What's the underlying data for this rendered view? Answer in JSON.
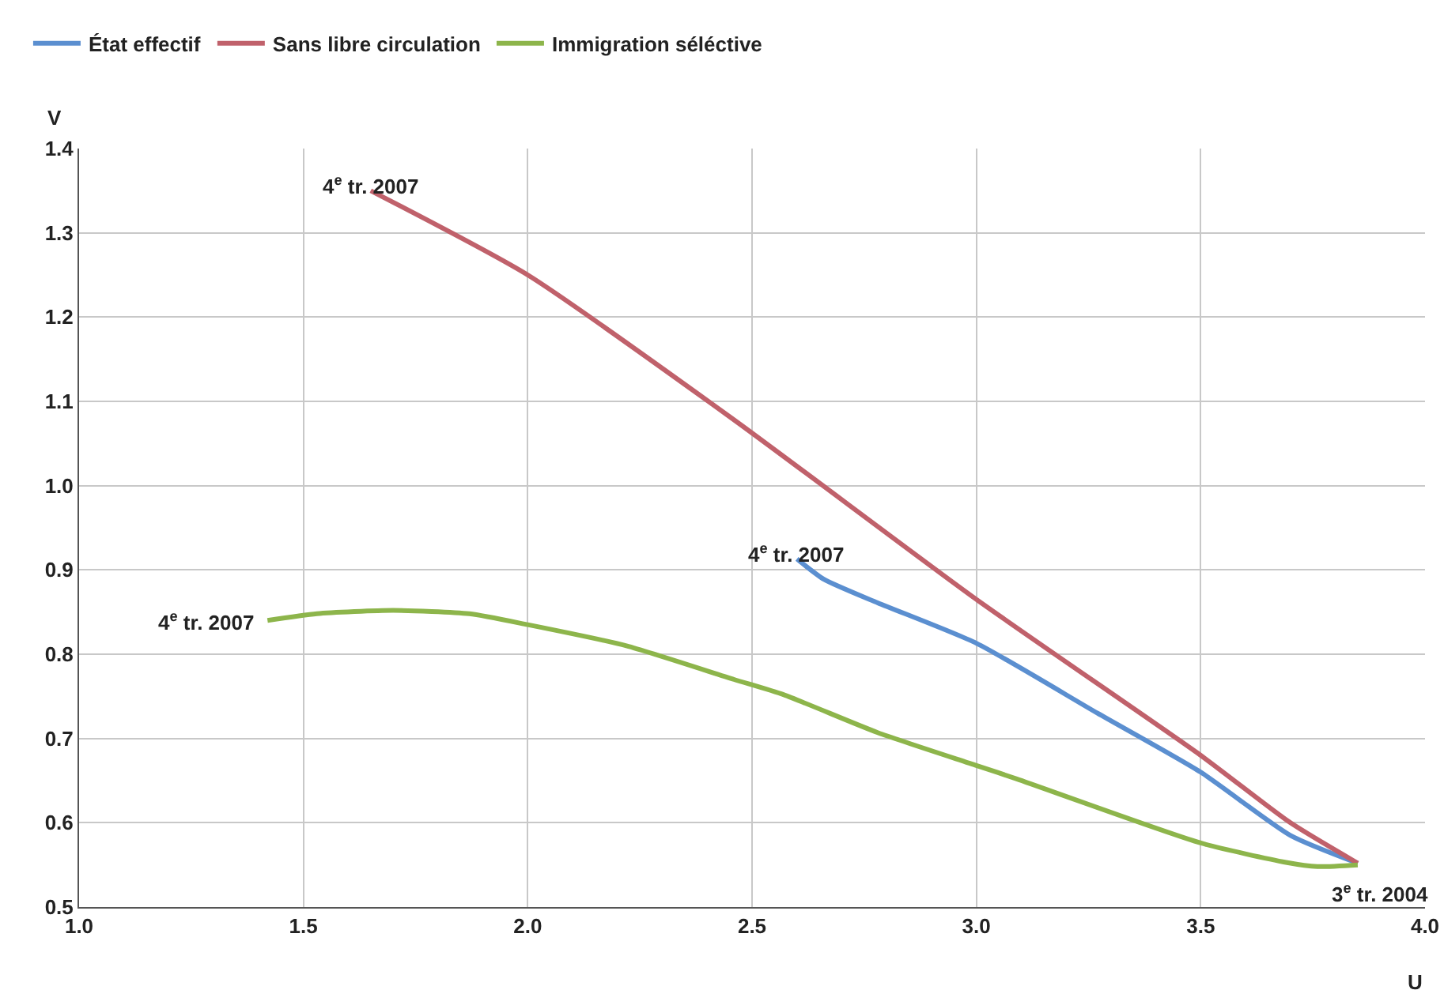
{
  "chart_data": {
    "type": "line",
    "xlabel": "U",
    "ylabel": "V",
    "xlim": [
      1.0,
      4.0
    ],
    "xticks": [
      {
        "value": 1.0,
        "label": "1.0"
      },
      {
        "value": 1.5,
        "label": "1.5"
      },
      {
        "value": 2.0,
        "label": "2.0"
      },
      {
        "value": 2.5,
        "label": "2.5"
      },
      {
        "value": 3.0,
        "label": "3.0"
      },
      {
        "value": 3.5,
        "label": "3.5"
      },
      {
        "value": 4.0,
        "label": "4.0"
      }
    ],
    "ylim": [
      0.5,
      1.4
    ],
    "yticks": [
      0.5,
      0.6,
      0.7,
      0.8,
      0.9,
      {
        "value": 1.0,
        "label": "1.0"
      },
      1.1,
      1.2,
      1.3,
      1.4
    ],
    "grid": true,
    "legend": "top left",
    "marker": "none",
    "line_style": "solid",
    "series": [
      {
        "name": "État effectif",
        "color": "#5b8fd0",
        "x": [
          2.6,
          2.66,
          2.78,
          3.0,
          3.27,
          3.5,
          3.7,
          3.85
        ],
        "values": [
          0.913,
          0.889,
          0.861,
          0.813,
          0.73,
          0.66,
          0.585,
          0.552
        ]
      },
      {
        "name": "Sans libre circulation",
        "color": "#c0616b",
        "x": [
          1.65,
          2.0,
          2.46,
          3.0,
          3.5,
          3.7,
          3.85
        ],
        "values": [
          1.35,
          1.25,
          1.078,
          0.865,
          0.68,
          0.6,
          0.552
        ]
      },
      {
        "name": "Immigration séléctive",
        "color": "#8db54b",
        "x": [
          1.42,
          1.53,
          1.7,
          1.87,
          2.0,
          2.22,
          2.46,
          2.57,
          2.78,
          3.0,
          3.09,
          3.5,
          3.69,
          3.76,
          3.85
        ],
        "values": [
          0.84,
          0.848,
          0.852,
          0.848,
          0.835,
          0.81,
          0.77,
          0.752,
          0.707,
          0.668,
          0.652,
          0.576,
          0.553,
          0.548,
          0.55
        ]
      }
    ],
    "annotations": [
      {
        "text": "4$^{e}$ tr. 2007",
        "x": 1.65,
        "y": 1.35
      },
      {
        "text": "4$^{e}$ tr. 2007",
        "x": 2.6,
        "y": 0.913
      },
      {
        "text": "4$^{e}$ tr. 2007",
        "x": 1.42,
        "y": 0.84
      },
      {
        "text": "3$^{e}$ tr. 2004",
        "x": 3.85,
        "y": 0.55
      }
    ]
  }
}
